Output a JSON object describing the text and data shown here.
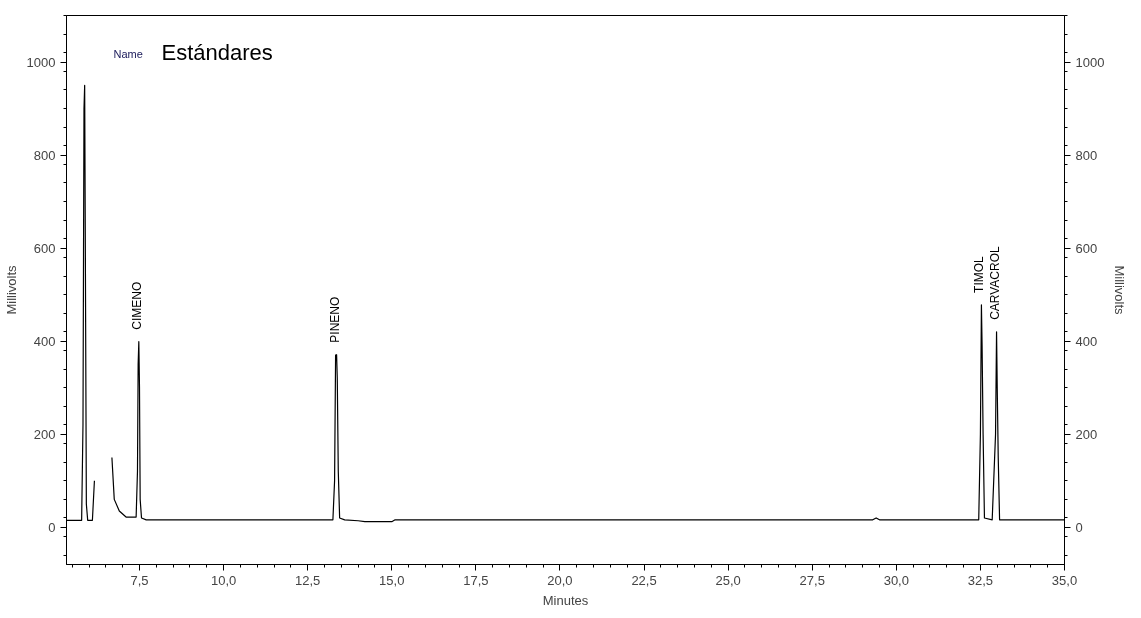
{
  "chart_data": {
    "type": "line",
    "title": "Estándares",
    "xlabel": "Minutes",
    "ylabel": "Millivolts",
    "y2label": "Millivolts",
    "series": [
      {
        "color": "#000000",
        "x": [
          5.33,
          5.78,
          5.82,
          5.85,
          5.87,
          5.89,
          5.92,
          5.96,
          6.1,
          6.16,
          6.22,
          6.62,
          6.68,
          6.75,
          6.9,
          7.1,
          7.4,
          7.44,
          7.46,
          7.48,
          7.5,
          7.52,
          7.56,
          7.7,
          13.25,
          13.3,
          13.33,
          13.36,
          13.38,
          13.41,
          13.45,
          13.6,
          14.0,
          14.2,
          15.0,
          15.1,
          29.3,
          29.4,
          29.5,
          32.45,
          32.5,
          32.53,
          32.55,
          32.58,
          32.62,
          32.85,
          32.95,
          32.98,
          33.0,
          33.03,
          33.07,
          35.0
        ],
        "values": [
          15,
          15,
          220,
          900,
          950,
          600,
          50,
          15,
          15,
          100,
          null,
          null,
          150,
          60,
          35,
          22,
          22,
          120,
          350,
          399,
          300,
          60,
          20,
          16,
          16,
          100,
          370,
          371,
          320,
          120,
          20,
          16,
          14,
          12,
          12,
          16,
          16,
          20,
          16,
          16,
          200,
          478,
          390,
          200,
          20,
          16,
          200,
          420,
          300,
          150,
          16,
          16
        ]
      }
    ],
    "annotations": [
      {
        "text": "CIMENO",
        "x": 7.48,
        "y": 399
      },
      {
        "text": "PINENO",
        "x": 13.36,
        "y": 371
      },
      {
        "text": "TIMOL",
        "x": 32.53,
        "y": 478
      },
      {
        "text": "CARVACROL",
        "x": 32.98,
        "y": 420
      },
      "Name"
    ],
    "xlim": [
      5.33,
      35.0
    ],
    "xticks": [
      {
        "value": 7.5,
        "label": "7,5"
      },
      {
        "value": 10,
        "label": "10,0"
      },
      {
        "value": 12.5,
        "label": "12,5"
      },
      {
        "value": 15,
        "label": "15,0"
      },
      {
        "value": 17.5,
        "label": "17,5"
      },
      {
        "value": 20,
        "label": "20,0"
      },
      {
        "value": 22.5,
        "label": "22,5"
      },
      {
        "value": 25,
        "label": "25,0"
      },
      {
        "value": 27.5,
        "label": "27,5"
      },
      {
        "value": 30,
        "label": "30,0"
      },
      {
        "value": 32.5,
        "label": "32,5"
      },
      {
        "value": 35,
        "label": "35,0"
      }
    ],
    "ylim": [
      -80,
      1100
    ],
    "yticks": [
      0,
      200,
      400,
      600,
      800,
      1000
    ],
    "y2lim": [
      -80,
      1100
    ],
    "y2ticks": [
      0,
      200,
      400,
      600,
      800,
      1000
    ],
    "grid": false,
    "marker": "none",
    "line_style": "solid"
  }
}
